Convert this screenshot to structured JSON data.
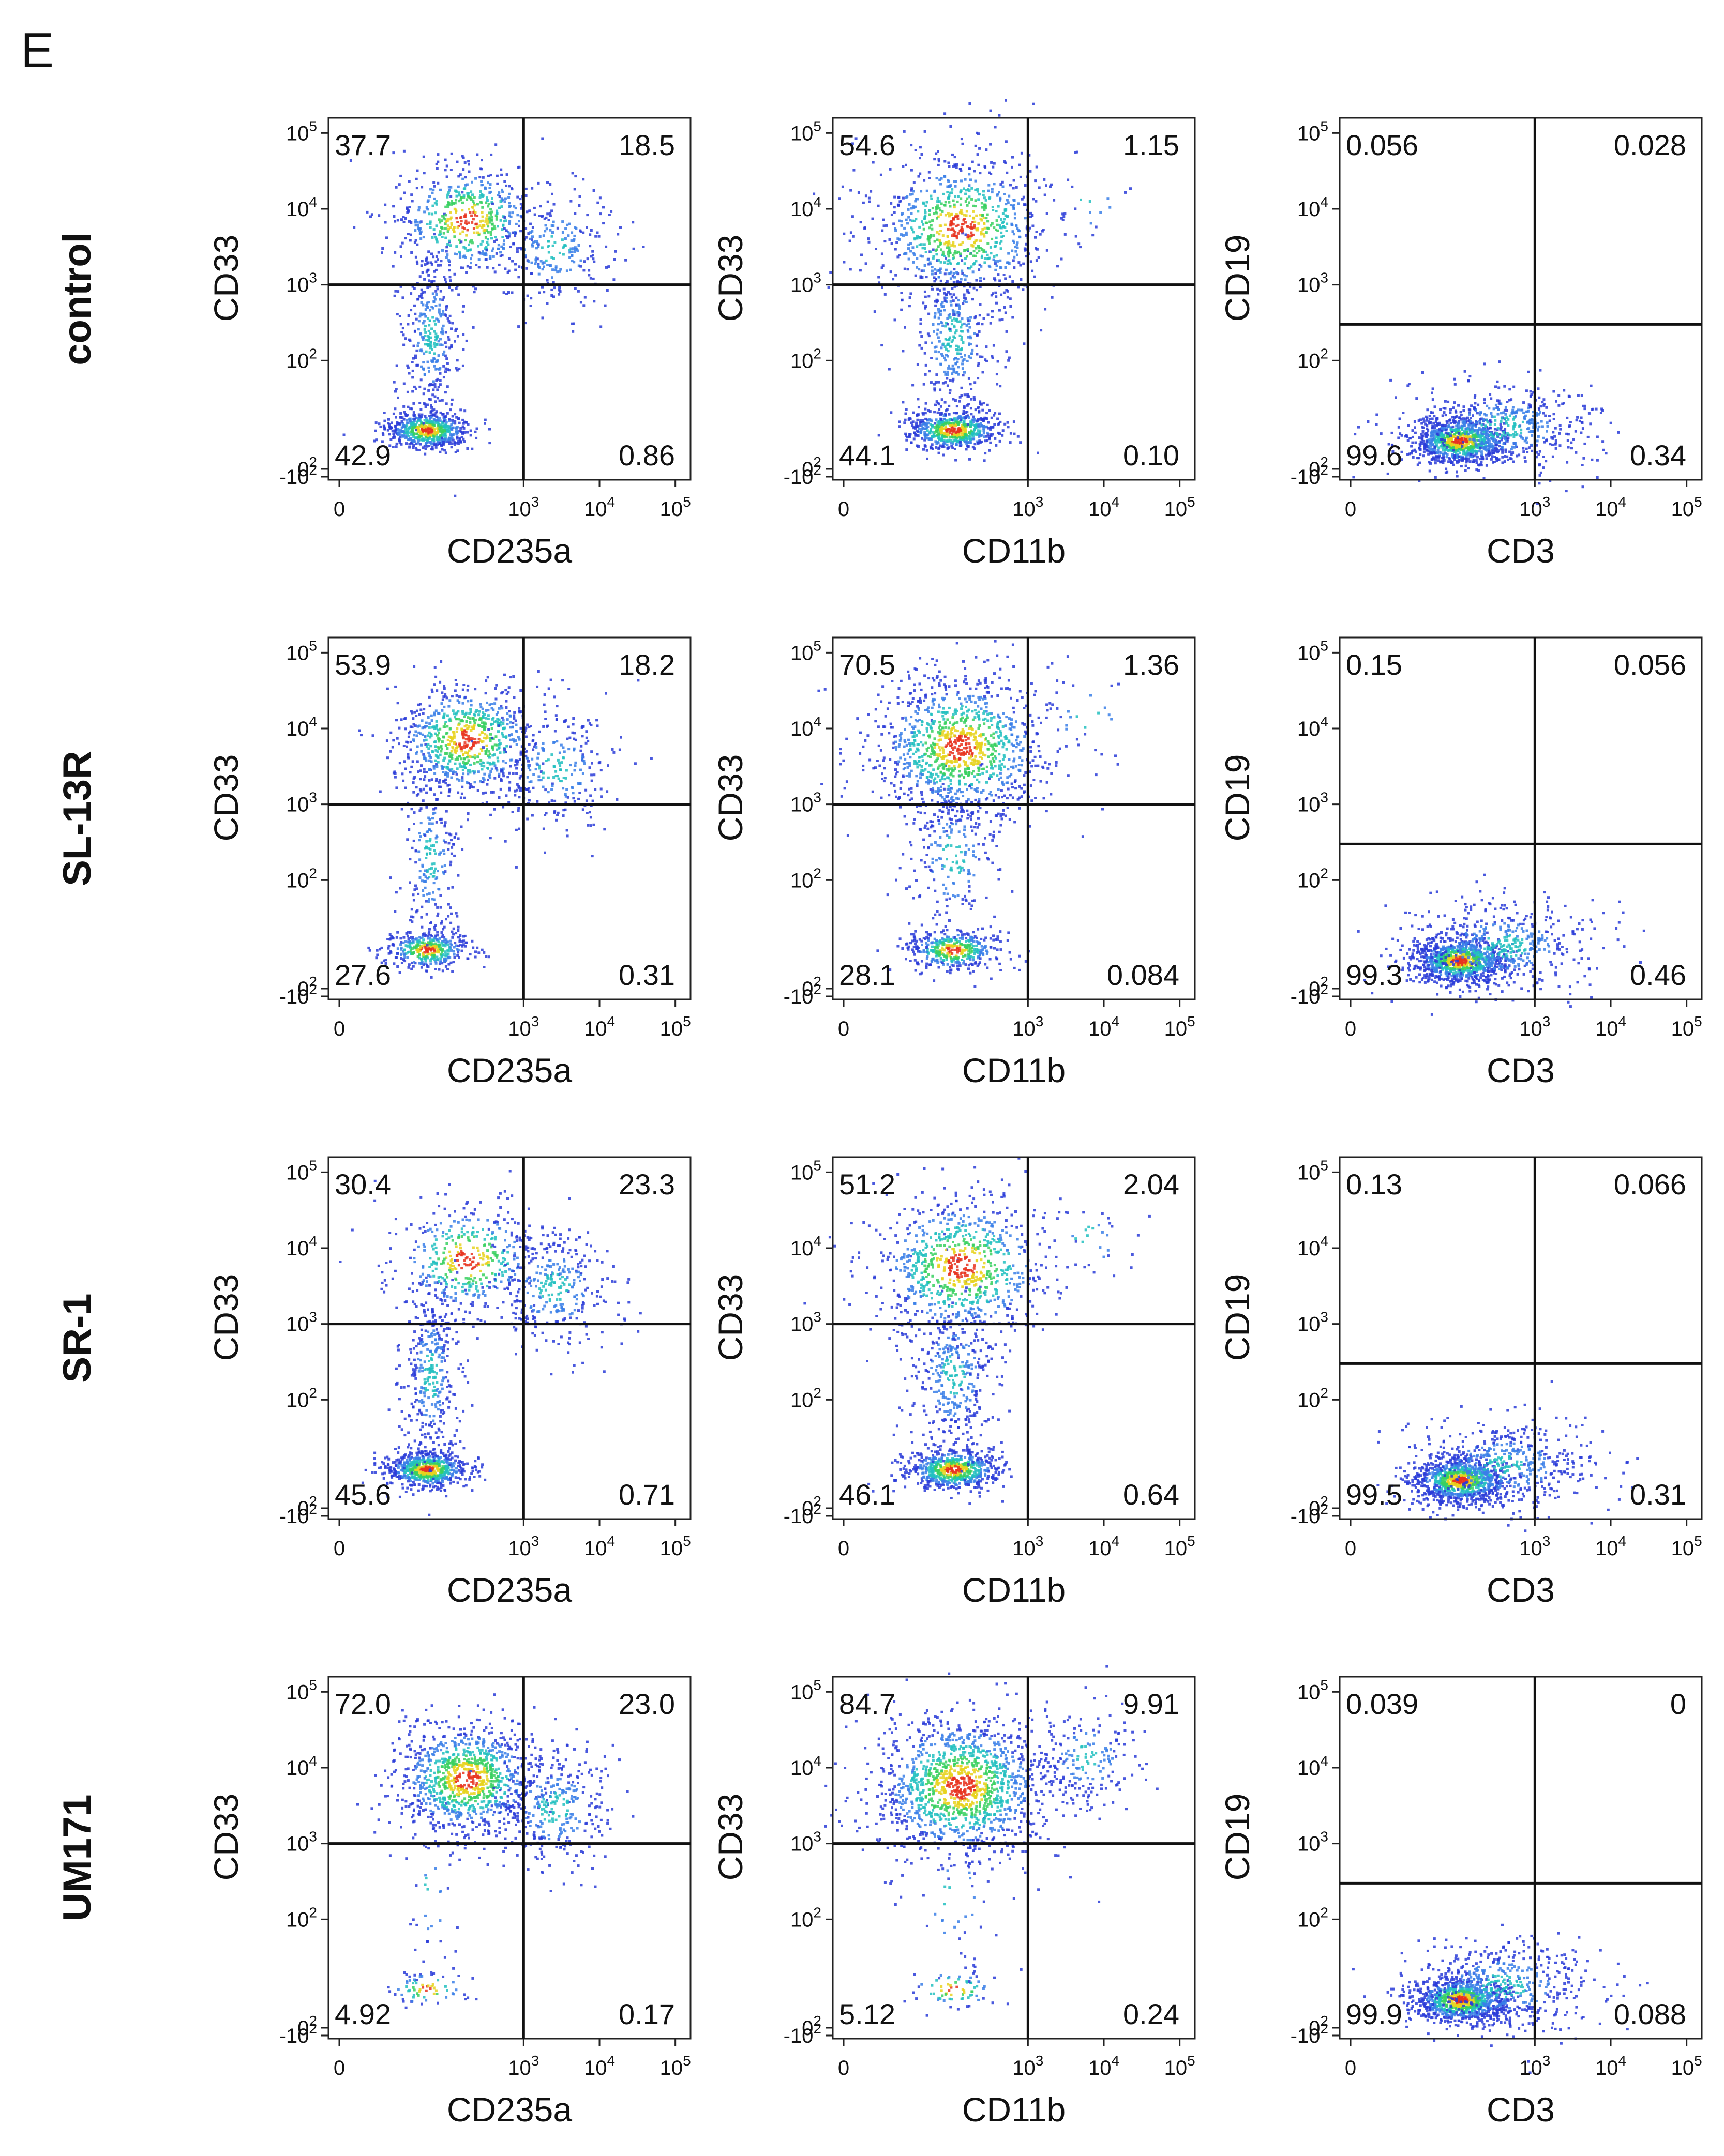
{
  "panel_letter": "E",
  "chart_data": {
    "type": "scatter",
    "subtype": "flow-cytometry-quadrant-grid",
    "rows": [
      "control",
      "SL-13R",
      "SR-1",
      "UM171"
    ],
    "axis_scale": "biexponential (log)",
    "x_ticks": [
      "0",
      "10^3",
      "10^4",
      "10^5"
    ],
    "y_ticks": [
      "10^5",
      "10^4",
      "10^3",
      "10^2",
      "0",
      "-10^2"
    ],
    "colors": {
      "low_density": "#2a3cd8",
      "mid_density": "#22c0c0",
      "high_density": "#e8d21f",
      "peak_density": "#e8321f"
    },
    "columns": [
      {
        "xlabel": "CD235a",
        "ylabel": "CD33",
        "x_gate": 1000,
        "y_gate": 1000,
        "quadrants": [
          {
            "row": "control",
            "UL": "37.7",
            "UR": "18.5",
            "LL": "42.9",
            "LR": "0.86"
          },
          {
            "row": "SL-13R",
            "UL": "53.9",
            "UR": "18.2",
            "LL": "27.6",
            "LR": "0.31"
          },
          {
            "row": "SR-1",
            "UL": "30.4",
            "UR": "23.3",
            "LL": "45.6",
            "LR": "0.71"
          },
          {
            "row": "UM171",
            "UL": "72.0",
            "UR": "23.0",
            "LL": "4.92",
            "LR": "0.17"
          }
        ]
      },
      {
        "xlabel": "CD11b",
        "ylabel": "CD33",
        "x_gate": 1000,
        "y_gate": 1000,
        "quadrants": [
          {
            "row": "control",
            "UL": "54.6",
            "UR": "1.15",
            "LL": "44.1",
            "LR": "0.10"
          },
          {
            "row": "SL-13R",
            "UL": "70.5",
            "UR": "1.36",
            "LL": "28.1",
            "LR": "0.084"
          },
          {
            "row": "SR-1",
            "UL": "51.2",
            "UR": "2.04",
            "LL": "46.1",
            "LR": "0.64"
          },
          {
            "row": "UM171",
            "UL": "84.7",
            "UR": "9.91",
            "LL": "5.12",
            "LR": "0.24"
          }
        ]
      },
      {
        "xlabel": "CD3",
        "ylabel": "CD19",
        "x_gate": 1000,
        "y_gate": 300,
        "quadrants": [
          {
            "row": "control",
            "UL": "0.056",
            "UR": "0.028",
            "LL": "99.6",
            "LR": "0.34"
          },
          {
            "row": "SL-13R",
            "UL": "0.15",
            "UR": "0.056",
            "LL": "99.3",
            "LR": "0.46"
          },
          {
            "row": "SR-1",
            "UL": "0.13",
            "UR": "0.066",
            "LL": "99.5",
            "LR": "0.31"
          },
          {
            "row": "UM171",
            "UL": "0.039",
            "UR": "0",
            "LL": "99.9",
            "LR": "0.088"
          }
        ]
      }
    ]
  }
}
